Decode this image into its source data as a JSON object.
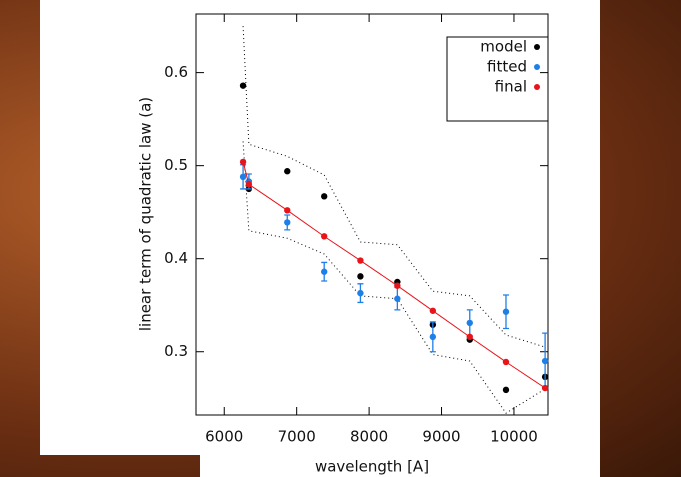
{
  "chart_data": {
    "type": "scatter",
    "xlabel": "wavelength [A]",
    "ylabel": "linear term of quadratic law (a)",
    "x": [
      6260,
      6340,
      6870,
      7380,
      7880,
      8390,
      8880,
      9390,
      9890,
      10430
    ],
    "series": [
      {
        "name": "model",
        "color": "#000000",
        "values": [
          0.586,
          0.475,
          0.494,
          0.467,
          0.381,
          0.375,
          0.329,
          0.313,
          0.259,
          0.273
        ]
      },
      {
        "name": "fitted",
        "color": "#1e7fe8",
        "values": [
          0.488,
          0.483,
          0.439,
          0.386,
          0.363,
          0.357,
          0.316,
          0.331,
          0.343,
          0.29
        ],
        "errors": [
          0.013,
          0.008,
          0.008,
          0.01,
          0.01,
          0.012,
          0.016,
          0.014,
          0.018,
          0.03
        ]
      },
      {
        "name": "final",
        "color": "#e8141a",
        "line": true,
        "values": [
          0.504,
          0.48,
          0.452,
          0.424,
          0.398,
          0.371,
          0.344,
          0.316,
          0.289,
          0.261
        ]
      }
    ],
    "bounds": [
      {
        "values": [
          0.65,
          0.523,
          0.51,
          0.49,
          0.418,
          0.415,
          0.365,
          0.36,
          0.318,
          0.305
        ]
      },
      {
        "values": [
          0.526,
          0.43,
          0.422,
          0.405,
          0.36,
          0.357,
          0.297,
          0.29,
          0.234,
          0.26
        ]
      }
    ],
    "xlim": [
      5610,
      10470
    ],
    "ylim": [
      0.232,
      0.663
    ],
    "xticks": [
      6000,
      7000,
      8000,
      9000,
      10000
    ],
    "yticks": [
      0.3,
      0.4,
      0.5,
      0.6
    ],
    "legend": "upper right"
  }
}
